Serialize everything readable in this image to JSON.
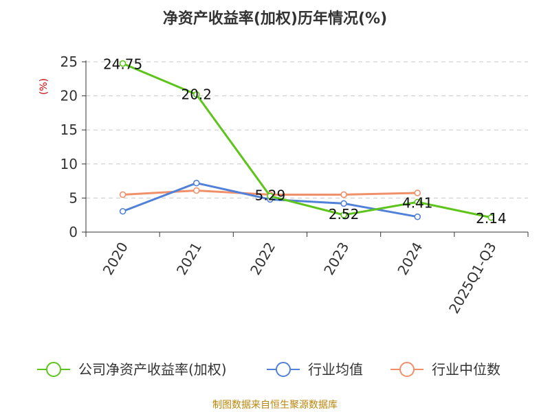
{
  "chart_data": {
    "type": "line",
    "title": "净资产收益率(加权)历年情况(%)",
    "ylabel": "(%)",
    "xlabel": "",
    "categories": [
      "2020",
      "2021",
      "2022",
      "2023",
      "2024",
      "2025Q1-Q3"
    ],
    "ylim": [
      0,
      25
    ],
    "yticks": [
      0,
      5,
      10,
      15,
      20,
      25
    ],
    "grid": true,
    "legend_position": "bottom",
    "series": [
      {
        "name": "公司净资产收益率(加权)",
        "color": "#5cc41a",
        "values": [
          24.75,
          20.2,
          5.29,
          2.52,
          4.41,
          2.14
        ],
        "labels": [
          "24.75",
          "20.2",
          "5.29",
          "2.52",
          "4.41",
          "2.14"
        ]
      },
      {
        "name": "行业均值",
        "color": "#5080d8",
        "values": [
          3.05,
          7.2,
          4.8,
          4.2,
          2.25,
          null
        ]
      },
      {
        "name": "行业中位数",
        "color": "#f0906a",
        "values": [
          5.5,
          6.1,
          5.5,
          5.5,
          5.75,
          null
        ]
      }
    ]
  },
  "source": "制图数据来自恒生聚源数据库"
}
